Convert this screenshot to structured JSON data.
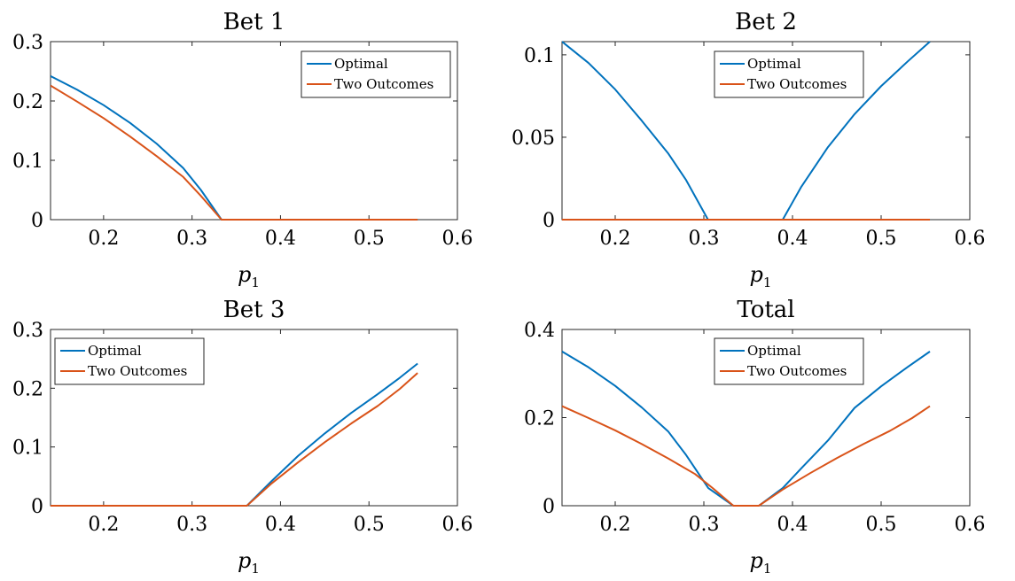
{
  "figure": {
    "colors": {
      "optimal": "#0072BD",
      "two_outcomes": "#D95319",
      "axes": "#262626"
    }
  },
  "chart_data": [
    {
      "type": "line",
      "title": "Bet 1",
      "xlabel_main": "p",
      "xlabel_sub": "1",
      "xlim": [
        0.14,
        0.6
      ],
      "ylim": [
        0,
        0.3
      ],
      "xticks": [
        0.2,
        0.3,
        0.4,
        0.5,
        0.6
      ],
      "yticks": [
        0,
        0.1,
        0.2,
        0.3
      ],
      "xtick_labels": [
        "0.2",
        "0.3",
        "0.4",
        "0.5",
        "0.6"
      ],
      "ytick_labels": [
        "0",
        "0.1",
        "0.2",
        "0.3"
      ],
      "legend_position": "top-right",
      "series": [
        {
          "name": "Optimal",
          "color": "#0072BD",
          "points": [
            [
              0.14,
              0.242
            ],
            [
              0.17,
              0.219
            ],
            [
              0.2,
              0.193
            ],
            [
              0.23,
              0.163
            ],
            [
              0.26,
              0.128
            ],
            [
              0.29,
              0.087
            ],
            [
              0.31,
              0.05
            ],
            [
              0.3333,
              0
            ],
            [
              0.555,
              0
            ]
          ]
        },
        {
          "name": "Two Outcomes",
          "color": "#D95319",
          "points": [
            [
              0.14,
              0.226
            ],
            [
              0.17,
              0.199
            ],
            [
              0.2,
              0.171
            ],
            [
              0.23,
              0.14
            ],
            [
              0.26,
              0.107
            ],
            [
              0.29,
              0.072
            ],
            [
              0.31,
              0.04
            ],
            [
              0.3333,
              0
            ],
            [
              0.555,
              0
            ]
          ]
        }
      ]
    },
    {
      "type": "line",
      "title": "Bet 2",
      "xlabel_main": "p",
      "xlabel_sub": "1",
      "xlim": [
        0.14,
        0.6
      ],
      "ylim": [
        0,
        0.108
      ],
      "xticks": [
        0.2,
        0.3,
        0.4,
        0.5,
        0.6
      ],
      "yticks": [
        0,
        0.05,
        0.1
      ],
      "xtick_labels": [
        "0.2",
        "0.3",
        "0.4",
        "0.5",
        "0.6"
      ],
      "ytick_labels": [
        "0",
        "0.05",
        "0.1"
      ],
      "legend_position": "top",
      "series": [
        {
          "name": "Optimal",
          "color": "#0072BD",
          "points": [
            [
              0.14,
              0.108
            ],
            [
              0.17,
              0.095
            ],
            [
              0.2,
              0.079
            ],
            [
              0.23,
              0.06
            ],
            [
              0.26,
              0.04
            ],
            [
              0.28,
              0.024
            ],
            [
              0.3047,
              0
            ],
            [
              0.389,
              0
            ],
            [
              0.41,
              0.02
            ],
            [
              0.44,
              0.044
            ],
            [
              0.47,
              0.064
            ],
            [
              0.5,
              0.081
            ],
            [
              0.53,
              0.096
            ],
            [
              0.555,
              0.108
            ]
          ]
        },
        {
          "name": "Two Outcomes",
          "color": "#D95319",
          "points": [
            [
              0.14,
              0
            ],
            [
              0.555,
              0
            ]
          ]
        }
      ]
    },
    {
      "type": "line",
      "title": "Bet 3",
      "xlabel_main": "p",
      "xlabel_sub": "1",
      "xlim": [
        0.14,
        0.6
      ],
      "ylim": [
        0,
        0.3
      ],
      "xticks": [
        0.2,
        0.3,
        0.4,
        0.5,
        0.6
      ],
      "yticks": [
        0,
        0.1,
        0.2,
        0.3
      ],
      "xtick_labels": [
        "0.2",
        "0.3",
        "0.4",
        "0.5",
        "0.6"
      ],
      "ytick_labels": [
        "0",
        "0.1",
        "0.2",
        "0.3"
      ],
      "legend_position": "top-left",
      "series": [
        {
          "name": "Optimal",
          "color": "#0072BD",
          "points": [
            [
              0.14,
              0
            ],
            [
              0.362,
              0
            ],
            [
              0.39,
              0.042
            ],
            [
              0.42,
              0.085
            ],
            [
              0.45,
              0.123
            ],
            [
              0.48,
              0.158
            ],
            [
              0.51,
              0.19
            ],
            [
              0.535,
              0.218
            ],
            [
              0.555,
              0.242
            ]
          ]
        },
        {
          "name": "Two Outcomes",
          "color": "#D95319",
          "points": [
            [
              0.14,
              0
            ],
            [
              0.362,
              0
            ],
            [
              0.39,
              0.038
            ],
            [
              0.42,
              0.074
            ],
            [
              0.45,
              0.108
            ],
            [
              0.48,
              0.14
            ],
            [
              0.51,
              0.17
            ],
            [
              0.535,
              0.199
            ],
            [
              0.555,
              0.226
            ]
          ]
        }
      ]
    },
    {
      "type": "line",
      "title": "Total",
      "xlabel_main": "p",
      "xlabel_sub": "1",
      "xlim": [
        0.14,
        0.6
      ],
      "ylim": [
        0,
        0.4
      ],
      "xticks": [
        0.2,
        0.3,
        0.4,
        0.5,
        0.6
      ],
      "yticks": [
        0,
        0.2,
        0.4
      ],
      "xtick_labels": [
        "0.2",
        "0.3",
        "0.4",
        "0.5",
        "0.6"
      ],
      "ytick_labels": [
        "0",
        "0.2",
        "0.4"
      ],
      "legend_position": "top",
      "series": [
        {
          "name": "Optimal",
          "color": "#0072BD",
          "points": [
            [
              0.14,
              0.35
            ],
            [
              0.17,
              0.314
            ],
            [
              0.2,
              0.272
            ],
            [
              0.23,
              0.223
            ],
            [
              0.26,
              0.168
            ],
            [
              0.28,
              0.115
            ],
            [
              0.305,
              0.04
            ],
            [
              0.3333,
              0
            ],
            [
              0.362,
              0
            ],
            [
              0.389,
              0.04
            ],
            [
              0.41,
              0.085
            ],
            [
              0.44,
              0.148
            ],
            [
              0.47,
              0.222
            ],
            [
              0.5,
              0.271
            ],
            [
              0.53,
              0.315
            ],
            [
              0.555,
              0.35
            ]
          ]
        },
        {
          "name": "Two Outcomes",
          "color": "#D95319",
          "points": [
            [
              0.14,
              0.226
            ],
            [
              0.17,
              0.199
            ],
            [
              0.2,
              0.171
            ],
            [
              0.23,
              0.14
            ],
            [
              0.26,
              0.107
            ],
            [
              0.29,
              0.072
            ],
            [
              0.31,
              0.04
            ],
            [
              0.3333,
              0
            ],
            [
              0.362,
              0
            ],
            [
              0.39,
              0.038
            ],
            [
              0.42,
              0.074
            ],
            [
              0.45,
              0.108
            ],
            [
              0.48,
              0.14
            ],
            [
              0.51,
              0.17
            ],
            [
              0.535,
              0.199
            ],
            [
              0.555,
              0.226
            ]
          ]
        }
      ]
    }
  ]
}
